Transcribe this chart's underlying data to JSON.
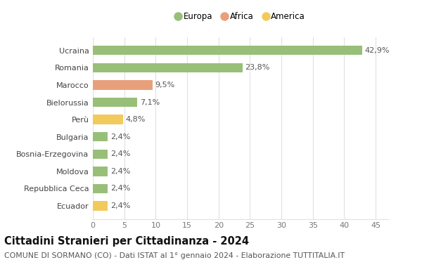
{
  "categories": [
    "Ecuador",
    "Repubblica Ceca",
    "Moldova",
    "Bosnia-Erzegovina",
    "Bulgaria",
    "Perù",
    "Bielorussia",
    "Marocco",
    "Romania",
    "Ucraina"
  ],
  "values": [
    2.4,
    2.4,
    2.4,
    2.4,
    2.4,
    4.8,
    7.1,
    9.5,
    23.8,
    42.9
  ],
  "labels": [
    "2,4%",
    "2,4%",
    "2,4%",
    "2,4%",
    "2,4%",
    "4,8%",
    "7,1%",
    "9,5%",
    "23,8%",
    "42,9%"
  ],
  "colors": [
    "#f2ca5c",
    "#98bf78",
    "#98bf78",
    "#98bf78",
    "#98bf78",
    "#f2ca5c",
    "#98bf78",
    "#e8a07a",
    "#98bf78",
    "#98bf78"
  ],
  "legend": [
    {
      "label": "Europa",
      "color": "#98bf78"
    },
    {
      "label": "Africa",
      "color": "#e8a07a"
    },
    {
      "label": "America",
      "color": "#f2ca5c"
    }
  ],
  "title": "Cittadini Stranieri per Cittadinanza - 2024",
  "subtitle": "COMUNE DI SORMANO (CO) - Dati ISTAT al 1° gennaio 2024 - Elaborazione TUTTITALIA.IT",
  "xlim": [
    0,
    47
  ],
  "xticks": [
    0,
    5,
    10,
    15,
    20,
    25,
    30,
    35,
    40,
    45
  ],
  "background_color": "#ffffff",
  "grid_color": "#e0e0e0",
  "bar_height": 0.55,
  "label_fontsize": 8,
  "title_fontsize": 10.5,
  "subtitle_fontsize": 7.8,
  "ytick_fontsize": 8,
  "xtick_fontsize": 8
}
